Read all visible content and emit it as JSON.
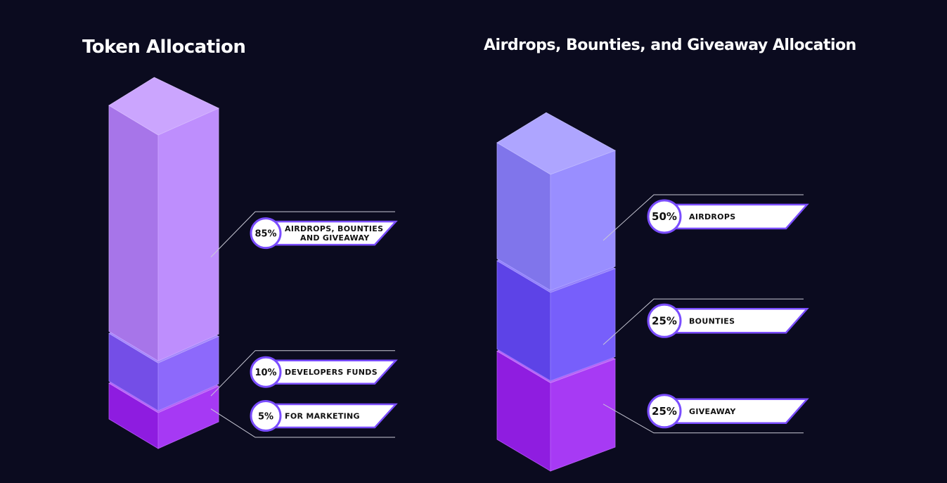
{
  "colors": {
    "background": "#0b0b1f",
    "label_border": "#7a4dff",
    "leader_line": "#c9c9d6"
  },
  "chart_data": [
    {
      "type": "bar",
      "title": "Token Allocation",
      "categories": [
        "AIRDROPS, BOUNTIES AND GIVEAWAY",
        "DEVELOPERS FUNDS",
        "FOR MARKETING"
      ],
      "values": [
        85,
        10,
        5
      ],
      "value_labels": [
        "85%",
        "10%",
        "5%"
      ],
      "label_lines": [
        [
          "AIRDROPS, BOUNTIES",
          "AND GIVEAWAY"
        ],
        [
          "DEVELOPERS FUNDS"
        ],
        [
          "FOR MARKETING"
        ]
      ],
      "colors": [
        "#b57ffd",
        "#7e55fb",
        "#9a1ef3"
      ],
      "style": "stacked isometric blocks"
    },
    {
      "type": "bar",
      "title": "Airdrops, Bounties, and Giveaway Allocation",
      "categories": [
        "AIRDROPS",
        "BOUNTIES",
        "GIVEAWAY"
      ],
      "values": [
        50,
        25,
        25
      ],
      "value_labels": [
        "50%",
        "25%",
        "25%"
      ],
      "label_lines": [
        [
          "AIRDROPS"
        ],
        [
          "BOUNTIES"
        ],
        [
          "GIVEAWAY"
        ]
      ],
      "colors": [
        "#8b7fff",
        "#6549fb",
        "#9b1ff3"
      ],
      "style": "stacked isometric blocks"
    }
  ]
}
